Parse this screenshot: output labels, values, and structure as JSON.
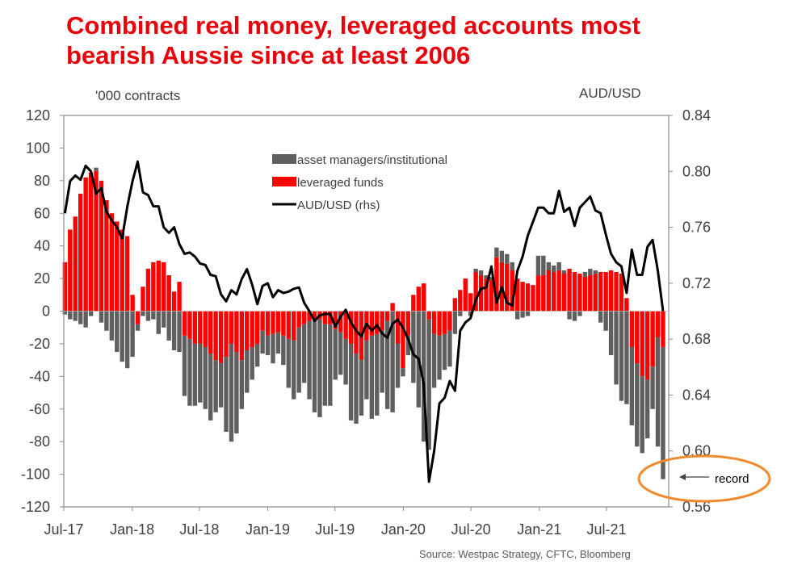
{
  "title_line1": "Combined real money, leveraged accounts most",
  "title_line2": "bearish Aussie since at least 2006",
  "source": "Source: Westpac Strategy, CFTC, Bloomberg",
  "annotation": "record",
  "colors": {
    "title": "#e8000b",
    "asset_managers": "#5f5f5f",
    "leveraged": "#ff0000",
    "audusd": "#000000",
    "annotation_ring": "#f08a2c"
  },
  "chart_data": {
    "type": "bar",
    "stacked": true,
    "title": "Combined real money, leveraged accounts most bearish Aussie since at least 2006",
    "ylabel": "'000 contracts",
    "y2label": "AUD/USD",
    "ylim": [
      -120,
      120
    ],
    "y2lim": [
      0.56,
      0.84
    ],
    "yticks": [
      "120",
      "100",
      "80",
      "60",
      "40",
      "20",
      "0",
      "-20",
      "-40",
      "-60",
      "-80",
      "-100",
      "-120"
    ],
    "y2ticks": [
      "0.84",
      "0.80",
      "0.76",
      "0.72",
      "0.68",
      "0.64",
      "0.60",
      "0.56"
    ],
    "xticks": [
      {
        "label": "Jul-17",
        "date": "2017-07-01"
      },
      {
        "label": "Jan-18",
        "date": "2018-01-01"
      },
      {
        "label": "Jul-18",
        "date": "2018-07-01"
      },
      {
        "label": "Jan-19",
        "date": "2019-01-01"
      },
      {
        "label": "Jul-19",
        "date": "2019-07-01"
      },
      {
        "label": "Jan-20",
        "date": "2020-01-01"
      },
      {
        "label": "Jul-20",
        "date": "2020-07-01"
      },
      {
        "label": "Jan-21",
        "date": "2021-01-01"
      },
      {
        "label": "Jul-21",
        "date": "2021-07-01"
      }
    ],
    "grid": false,
    "legend_position": "top-center",
    "x": [
      "2017-07-04",
      "2017-07-18",
      "2017-08-01",
      "2017-08-15",
      "2017-08-29",
      "2017-09-12",
      "2017-09-26",
      "2017-10-10",
      "2017-10-24",
      "2017-11-07",
      "2017-11-21",
      "2017-12-05",
      "2017-12-19",
      "2018-01-02",
      "2018-01-16",
      "2018-01-30",
      "2018-02-13",
      "2018-02-27",
      "2018-03-13",
      "2018-03-27",
      "2018-04-10",
      "2018-04-24",
      "2018-05-08",
      "2018-05-22",
      "2018-06-05",
      "2018-06-19",
      "2018-07-03",
      "2018-07-17",
      "2018-07-31",
      "2018-08-14",
      "2018-08-28",
      "2018-09-11",
      "2018-09-25",
      "2018-10-09",
      "2018-10-23",
      "2018-11-06",
      "2018-11-20",
      "2018-12-04",
      "2018-12-18",
      "2019-01-01",
      "2019-01-15",
      "2019-01-29",
      "2019-02-12",
      "2019-02-26",
      "2019-03-12",
      "2019-03-26",
      "2019-04-09",
      "2019-04-23",
      "2019-05-07",
      "2019-05-21",
      "2019-06-04",
      "2019-06-18",
      "2019-07-02",
      "2019-07-16",
      "2019-07-30",
      "2019-08-13",
      "2019-08-27",
      "2019-09-10",
      "2019-09-24",
      "2019-10-08",
      "2019-10-22",
      "2019-11-05",
      "2019-11-19",
      "2019-12-03",
      "2019-12-17",
      "2019-12-31",
      "2020-01-14",
      "2020-01-28",
      "2020-02-11",
      "2020-02-25",
      "2020-03-10",
      "2020-03-24",
      "2020-04-07",
      "2020-04-21",
      "2020-05-05",
      "2020-05-19",
      "2020-06-02",
      "2020-06-16",
      "2020-06-30",
      "2020-07-14",
      "2020-07-28",
      "2020-08-11",
      "2020-08-25",
      "2020-09-08",
      "2020-09-22",
      "2020-10-06",
      "2020-10-20",
      "2020-11-03",
      "2020-11-17",
      "2020-12-01",
      "2020-12-15",
      "2020-12-29",
      "2021-01-12",
      "2021-01-26",
      "2021-02-09",
      "2021-02-23",
      "2021-03-09",
      "2021-03-23",
      "2021-04-06",
      "2021-04-20",
      "2021-05-04",
      "2021-05-18",
      "2021-06-01",
      "2021-06-15",
      "2021-06-29",
      "2021-07-13",
      "2021-07-27",
      "2021-08-10",
      "2021-08-24",
      "2021-09-07",
      "2021-09-21",
      "2021-10-05",
      "2021-10-19",
      "2021-11-02",
      "2021-11-16",
      "2021-11-30"
    ],
    "series": [
      {
        "name": "leveraged funds",
        "kind": "bar",
        "axis": "left",
        "values": [
          30,
          50,
          58,
          72,
          82,
          85,
          86,
          80,
          68,
          60,
          55,
          50,
          46,
          10,
          -8,
          15,
          26,
          30,
          31,
          30,
          22,
          12,
          18,
          -15,
          -17,
          -20,
          -20,
          -22,
          -26,
          -30,
          -32,
          -28,
          -20,
          -25,
          -30,
          -24,
          -22,
          -20,
          -12,
          -15,
          -14,
          -13,
          -15,
          -17,
          -18,
          -10,
          -8,
          -6,
          -6,
          -5,
          -8,
          -8,
          -11,
          -13,
          -17,
          -20,
          -26,
          -30,
          -18,
          -15,
          -14,
          -12,
          -6,
          5,
          -20,
          -35,
          -15,
          10,
          15,
          17,
          -5,
          -14,
          -15,
          -14,
          -12,
          8,
          13,
          20,
          11,
          24,
          22,
          20,
          19,
          33,
          30,
          29,
          25,
          20,
          18,
          17,
          16,
          22,
          22,
          25,
          24,
          25,
          23,
          26,
          24,
          23,
          21,
          22,
          23,
          24,
          24,
          25,
          24,
          23,
          8,
          -22,
          -32,
          -40,
          -42,
          -34,
          -16,
          -22
        ]
      },
      {
        "name": "asset managers/institutional",
        "kind": "bar",
        "axis": "left",
        "values": [
          -2,
          -5,
          -6,
          -8,
          -10,
          -3,
          2,
          -7,
          -12,
          -18,
          -25,
          -31,
          -35,
          -28,
          -4,
          -3,
          -6,
          -5,
          -14,
          -10,
          -18,
          -24,
          -25,
          -37,
          -41,
          -38,
          -36,
          -38,
          -41,
          -32,
          -27,
          -46,
          -60,
          -50,
          -30,
          -26,
          -20,
          -14,
          -14,
          -12,
          -18,
          -13,
          -18,
          -30,
          -36,
          -40,
          -36,
          -48,
          -56,
          -60,
          -50,
          -50,
          -31,
          -26,
          -28,
          -47,
          -43,
          -34,
          -36,
          -51,
          -50,
          -38,
          -54,
          -62,
          -27,
          -5,
          -12,
          -44,
          -59,
          -80,
          -80,
          -33,
          -27,
          -22,
          -22,
          -14,
          -3,
          0,
          -3,
          2,
          3,
          2,
          2,
          6,
          7,
          6,
          5,
          -5,
          -4,
          -3,
          0,
          12,
          12,
          5,
          4,
          5,
          2,
          -5,
          -6,
          -3,
          3,
          4,
          2,
          -7,
          -12,
          -27,
          -45,
          -55,
          -57,
          -48,
          -51,
          -47,
          -36,
          -26,
          -67,
          -81
        ]
      },
      {
        "name": "AUD/USD (rhs)",
        "kind": "line",
        "axis": "right",
        "values": [
          0.77,
          0.793,
          0.797,
          0.794,
          0.804,
          0.8,
          0.784,
          0.788,
          0.771,
          0.765,
          0.76,
          0.752,
          0.775,
          0.793,
          0.807,
          0.785,
          0.783,
          0.775,
          0.775,
          0.76,
          0.756,
          0.76,
          0.748,
          0.741,
          0.742,
          0.739,
          0.734,
          0.733,
          0.726,
          0.725,
          0.712,
          0.707,
          0.715,
          0.712,
          0.723,
          0.73,
          0.719,
          0.705,
          0.718,
          0.72,
          0.71,
          0.715,
          0.713,
          0.714,
          0.716,
          0.717,
          0.706,
          0.7,
          0.693,
          0.697,
          0.698,
          0.698,
          0.689,
          0.696,
          0.701,
          0.692,
          0.686,
          0.682,
          0.691,
          0.686,
          0.69,
          0.684,
          0.681,
          0.691,
          0.694,
          0.688,
          0.68,
          0.669,
          0.666,
          0.648,
          0.578,
          0.6,
          0.634,
          0.638,
          0.65,
          0.643,
          0.686,
          0.692,
          0.695,
          0.708,
          0.716,
          0.717,
          0.732,
          0.706,
          0.717,
          0.706,
          0.704,
          0.729,
          0.739,
          0.754,
          0.764,
          0.774,
          0.774,
          0.77,
          0.77,
          0.786,
          0.771,
          0.774,
          0.761,
          0.774,
          0.778,
          0.782,
          0.772,
          0.77,
          0.755,
          0.741,
          0.735,
          0.732,
          0.713,
          0.744,
          0.726,
          0.726,
          0.746,
          0.751,
          0.729,
          0.7
        ]
      }
    ],
    "legend": [
      "asset managers/institutional",
      "leveraged funds",
      "AUD/USD (rhs)"
    ]
  }
}
